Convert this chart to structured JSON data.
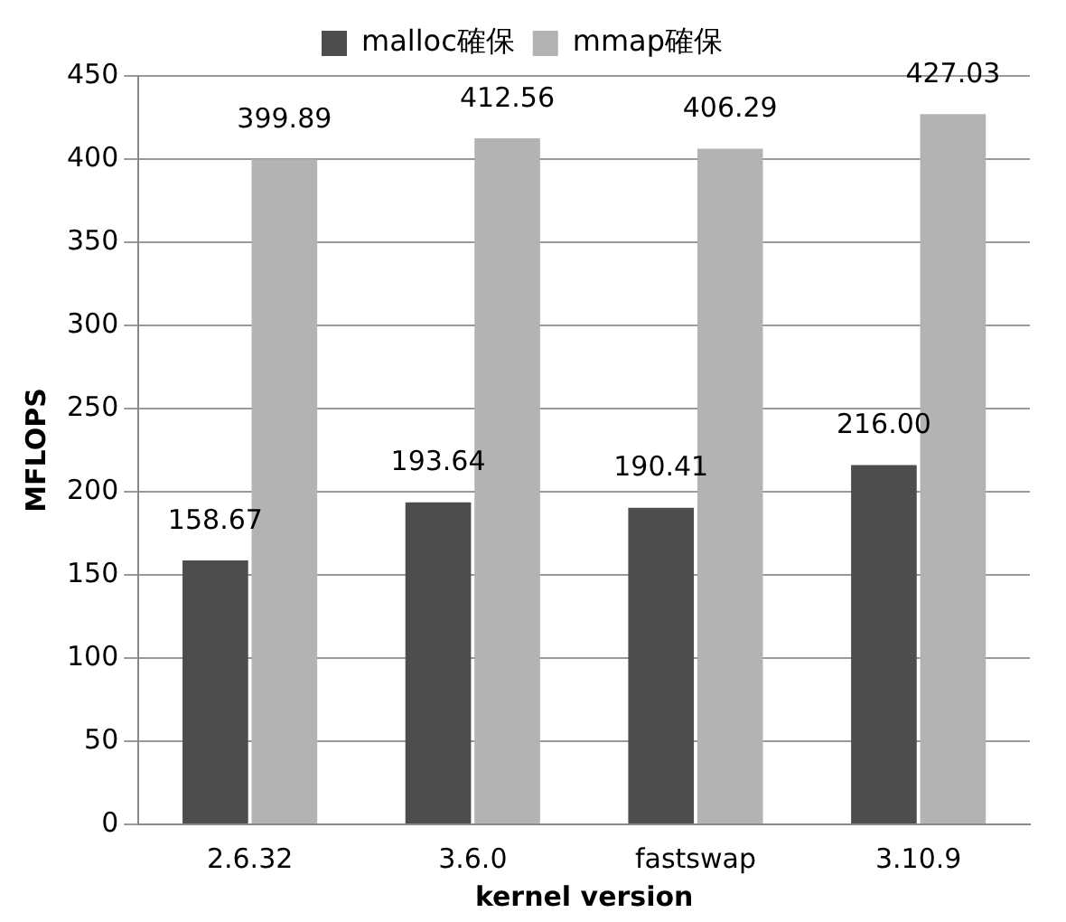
{
  "chart_data": {
    "type": "bar",
    "xlabel": "kernel version",
    "ylabel": "MFLOPS",
    "categories": [
      "2.6.32",
      "3.6.0",
      "fastswap",
      "3.10.9"
    ],
    "series": [
      {
        "name": "malloc確保",
        "color": "#4d4d4d",
        "values": [
          158.67,
          193.64,
          190.41,
          216.0
        ],
        "value_labels": [
          "158.67",
          "193.64",
          "190.41",
          "216.00"
        ]
      },
      {
        "name": "mmap確保",
        "color": "#b3b3b3",
        "values": [
          399.89,
          412.56,
          406.29,
          427.03
        ],
        "value_labels": [
          "399.89",
          "412.56",
          "406.29",
          "427.03"
        ]
      }
    ],
    "ylim": [
      0,
      450
    ],
    "yticks": [
      0,
      50,
      100,
      150,
      200,
      250,
      300,
      350,
      400,
      450
    ],
    "grid": "y",
    "legend": "top"
  }
}
